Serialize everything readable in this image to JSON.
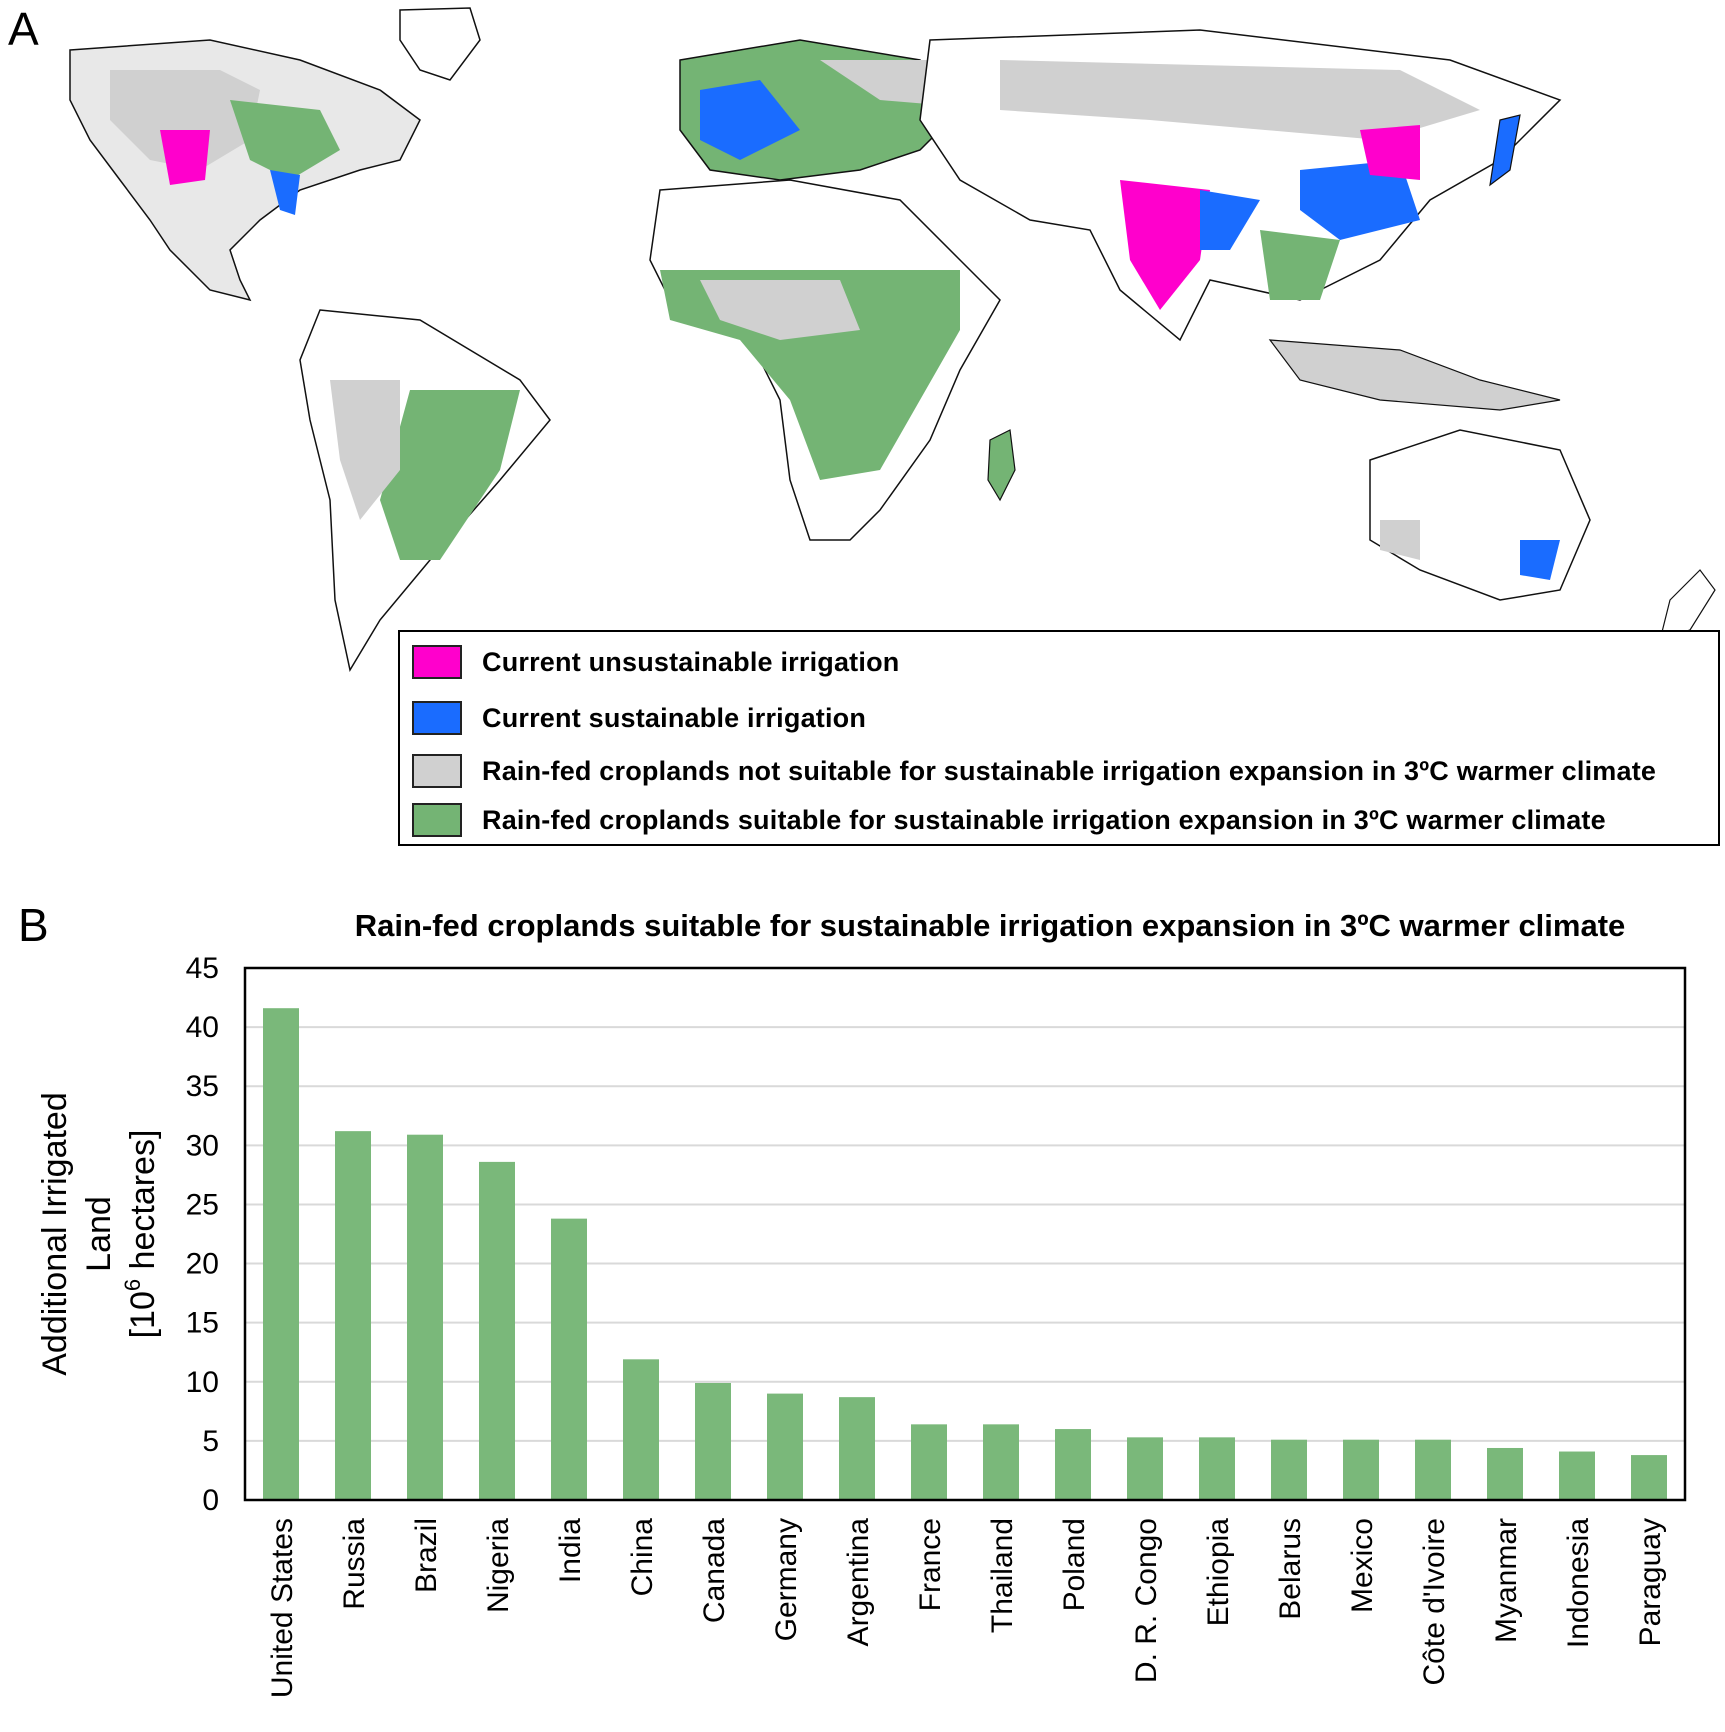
{
  "panels": {
    "a": "A",
    "b": "B"
  },
  "colors": {
    "unsustainable": "#ff00cc",
    "sustainable": "#1a6cff",
    "not_suitable": "#d0d0d0",
    "suitable": "#74b474",
    "bar": "#7ab87a",
    "grid": "#d9d9d9"
  },
  "legend": {
    "items": [
      {
        "label": "Current unsustainable irrigation",
        "color": "#ff00cc"
      },
      {
        "label": "Current sustainable irrigation",
        "color": "#1a6cff"
      },
      {
        "label": "Rain-fed croplands not suitable for sustainable irrigation expansion in 3ºC warmer climate",
        "color": "#d0d0d0"
      },
      {
        "label": "Rain-fed croplands suitable for sustainable irrigation expansion in 3ºC warmer climate",
        "color": "#74b474"
      }
    ]
  },
  "chart_data": {
    "type": "bar",
    "title": "Rain-fed croplands suitable for sustainable irrigation expansion in 3ºC warmer climate",
    "ylabel_lines": [
      "Additional Irrigated",
      "Land"
    ],
    "ylabel_unit_prefix": "[10",
    "ylabel_unit_sup": "6",
    "ylabel_unit_suffix": " hectares]",
    "ylim": [
      0,
      45
    ],
    "yticks": [
      "0",
      "5",
      "10",
      "15",
      "20",
      "25",
      "30",
      "35",
      "40",
      "45"
    ],
    "grid": true,
    "categories": [
      "United States",
      "Russia",
      "Brazil",
      "Nigeria",
      "India",
      "China",
      "Canada",
      "Germany",
      "Argentina",
      "France",
      "Thailand",
      "Poland",
      "D. R. Congo",
      "Ethiopia",
      "Belarus",
      "Mexico",
      "Côte d'Ivoire",
      "Myanmar",
      "Indonesia",
      "Paraguay"
    ],
    "values": [
      41.6,
      31.2,
      30.9,
      28.6,
      23.8,
      11.9,
      9.9,
      9.0,
      8.7,
      6.4,
      6.4,
      6.0,
      5.3,
      5.3,
      5.1,
      5.1,
      5.1,
      4.4,
      4.1,
      3.8
    ]
  }
}
